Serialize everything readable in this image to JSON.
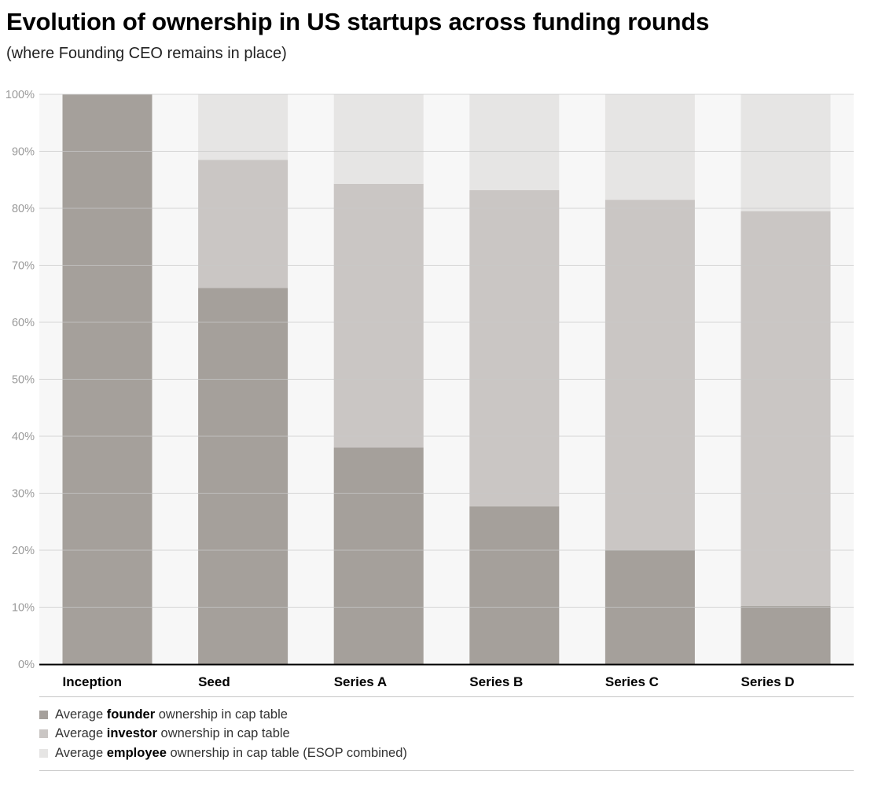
{
  "title": "Evolution of ownership in US startups across funding rounds",
  "subtitle": "(where Founding CEO remains in place)",
  "colors": {
    "founder": "#a5a09b",
    "investor": "#cac6c4",
    "employee": "#e6e5e4",
    "plot_background": "#f7f7f7",
    "grid": "#c8c8c8",
    "tick_text": "#999999"
  },
  "legend": [
    {
      "prefix": "Average ",
      "bold": "founder",
      "suffix": " ownership in cap table",
      "color_key": "founder"
    },
    {
      "prefix": "Average ",
      "bold": "investor",
      "suffix": " ownership in cap table",
      "color_key": "investor"
    },
    {
      "prefix": "Average ",
      "bold": "employee",
      "suffix": " ownership in cap table (ESOP combined)",
      "color_key": "employee"
    }
  ],
  "chart_data": {
    "type": "bar",
    "stacked": true,
    "title": "Evolution of ownership in US startups across funding rounds",
    "subtitle": "(where Founding CEO remains in place)",
    "categories": [
      "Inception",
      "Seed",
      "Series A",
      "Series B",
      "Series C",
      "Series D"
    ],
    "series": [
      {
        "name": "Average founder ownership in cap table",
        "key": "founder",
        "values": [
          100,
          66,
          38,
          27.7,
          20,
          10.2
        ]
      },
      {
        "name": "Average investor ownership in cap table",
        "key": "investor",
        "values": [
          0,
          22.5,
          46.3,
          55.5,
          61.5,
          69.3
        ]
      },
      {
        "name": "Average employee ownership in cap table (ESOP combined)",
        "key": "employee",
        "values": [
          0,
          11.5,
          15.7,
          16.8,
          18.5,
          20.5
        ]
      }
    ],
    "ylim": [
      0,
      100
    ],
    "yticks": [
      "0%",
      "10%",
      "20%",
      "30%",
      "40%",
      "50%",
      "60%",
      "70%",
      "80%",
      "90%",
      "100%"
    ],
    "ylabel": "",
    "xlabel": "",
    "grid": true,
    "legend_position": "bottom"
  }
}
